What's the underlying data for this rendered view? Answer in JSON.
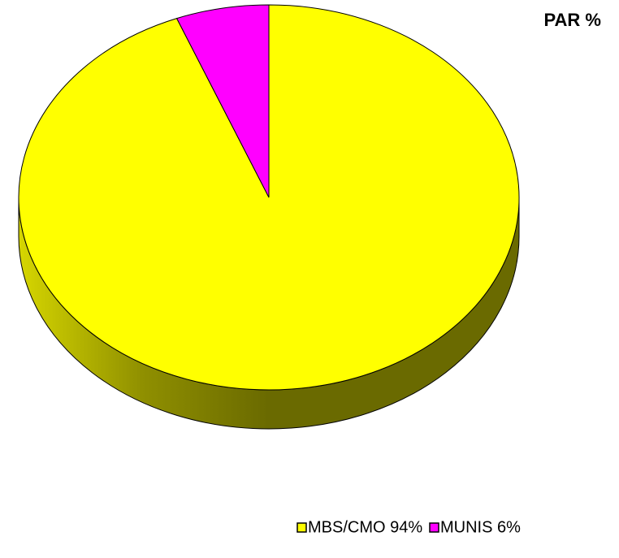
{
  "chart_data": {
    "type": "pie",
    "title": "PAR %",
    "categories": [
      "MBS/CMO 94%",
      "MUNIS 6%"
    ],
    "values": [
      94,
      6
    ],
    "colors": [
      "#ffff00",
      "#ff00ff"
    ],
    "legend": "bottom"
  }
}
